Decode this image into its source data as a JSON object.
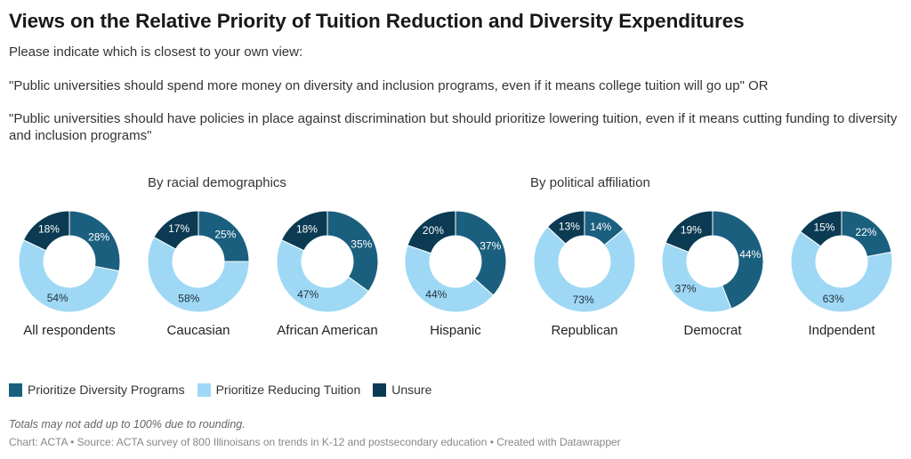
{
  "title": "Views on the Relative Priority of Tuition Reduction and Diversity Expenditures",
  "intro": {
    "line1": "Please indicate which is closest to your own view:",
    "line2": "\"Public universities should spend more money on diversity and inclusion programs, even if it means college tuition will go up\" OR",
    "line3": "\"Public universities should have policies in place against discrimination but should prioritize lowering tuition, even if it means cutting funding to diversity and inclusion programs\""
  },
  "group_headers": {
    "racial": "By racial demographics",
    "political": "By political affiliation"
  },
  "legend": [
    {
      "label": "Prioritize Diversity Programs",
      "color": "#1b5f7e"
    },
    {
      "label": "Prioritize Reducing Tuition",
      "color": "#9fd8f5"
    },
    {
      "label": "Unsure",
      "color": "#0b3a52"
    }
  ],
  "note": "Totals may not add up to 100% due to rounding.",
  "footer": "Chart: ACTA • Source: ACTA survey of 800 Illinoisans on trends in K-12 and postsecondary education • Created with Datawrapper",
  "chart_data": {
    "type": "pie",
    "variant": "donut",
    "series_names": [
      "Prioritize Diversity Programs",
      "Prioritize Reducing Tuition",
      "Unsure"
    ],
    "colors": [
      "#1b5f7e",
      "#9fd8f5",
      "#0b3a52"
    ],
    "charts": [
      {
        "label": "All respondents",
        "values": [
          28,
          54,
          18
        ]
      },
      {
        "label": "Caucasian",
        "values": [
          25,
          58,
          17
        ]
      },
      {
        "label": "African American",
        "values": [
          35,
          47,
          18
        ]
      },
      {
        "label": "Hispanic",
        "values": [
          37,
          44,
          20
        ]
      },
      {
        "label": "Republican",
        "values": [
          14,
          73,
          13
        ]
      },
      {
        "label": "Democrat",
        "values": [
          44,
          37,
          19
        ]
      },
      {
        "label": "Indpendent",
        "values": [
          22,
          63,
          15
        ]
      }
    ]
  }
}
